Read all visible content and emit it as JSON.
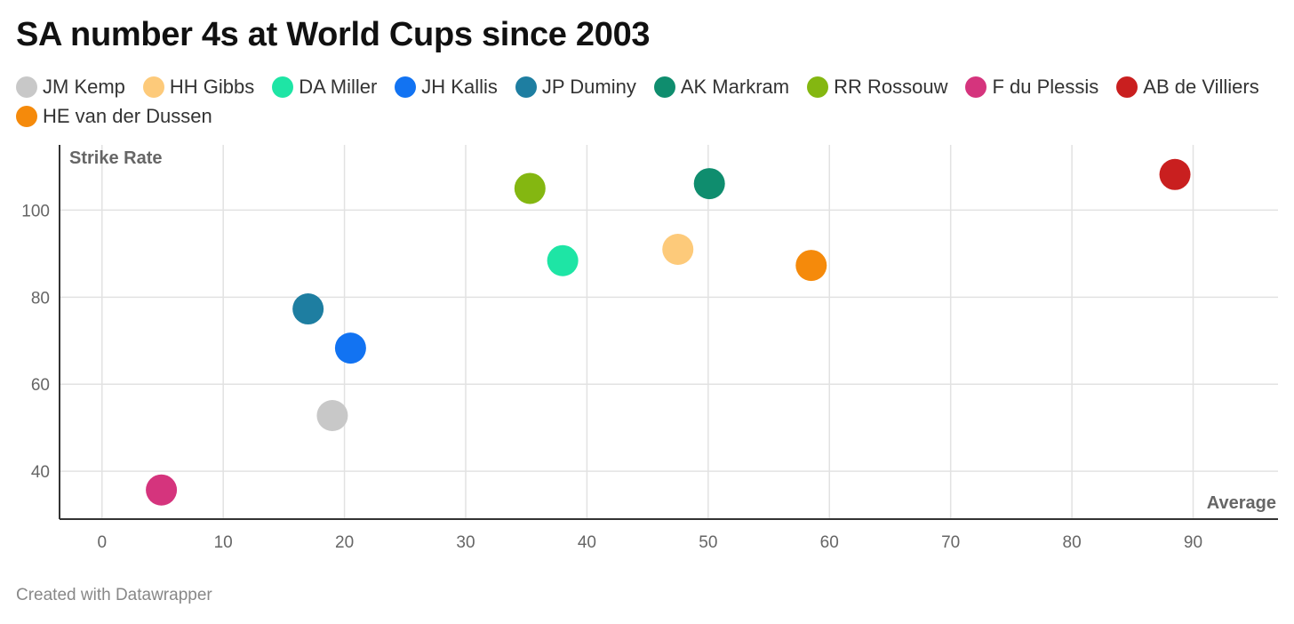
{
  "title": "SA number 4s at World Cups since 2003",
  "footer": "Created with Datawrapper",
  "chart_data": {
    "type": "scatter",
    "title": "SA number 4s at World Cups since 2003",
    "xlabel": "Average",
    "ylabel": "Strike Rate",
    "xlim": [
      -3.5,
      97
    ],
    "ylim": [
      29,
      115
    ],
    "xticks": [
      0,
      10,
      20,
      30,
      40,
      50,
      60,
      70,
      80,
      90
    ],
    "yticks": [
      40,
      60,
      80,
      100
    ],
    "grid": true,
    "legend_position": "top",
    "series": [
      {
        "name": "JM Kemp",
        "color": "#c8c8c8",
        "x": 19.0,
        "y": 52.8
      },
      {
        "name": "HH Gibbs",
        "color": "#fdca7a",
        "x": 47.5,
        "y": 91.0
      },
      {
        "name": "DA Miller",
        "color": "#1ee5a5",
        "x": 38.0,
        "y": 88.4
      },
      {
        "name": "JH Kallis",
        "color": "#1273f2",
        "x": 20.5,
        "y": 68.3
      },
      {
        "name": "JP Duminy",
        "color": "#1e7ea1",
        "x": 17.0,
        "y": 77.3
      },
      {
        "name": "AK Markram",
        "color": "#0f8d6e",
        "x": 50.1,
        "y": 106.1
      },
      {
        "name": "RR Rossouw",
        "color": "#84b711",
        "x": 35.3,
        "y": 105.0
      },
      {
        "name": "F du Plessis",
        "color": "#d5347d",
        "x": 4.9,
        "y": 35.7
      },
      {
        "name": "AB de Villiers",
        "color": "#c91f1f",
        "x": 88.5,
        "y": 108.2
      },
      {
        "name": "HE van der Dussen",
        "color": "#f58a0b",
        "x": 58.5,
        "y": 87.3
      }
    ]
  }
}
